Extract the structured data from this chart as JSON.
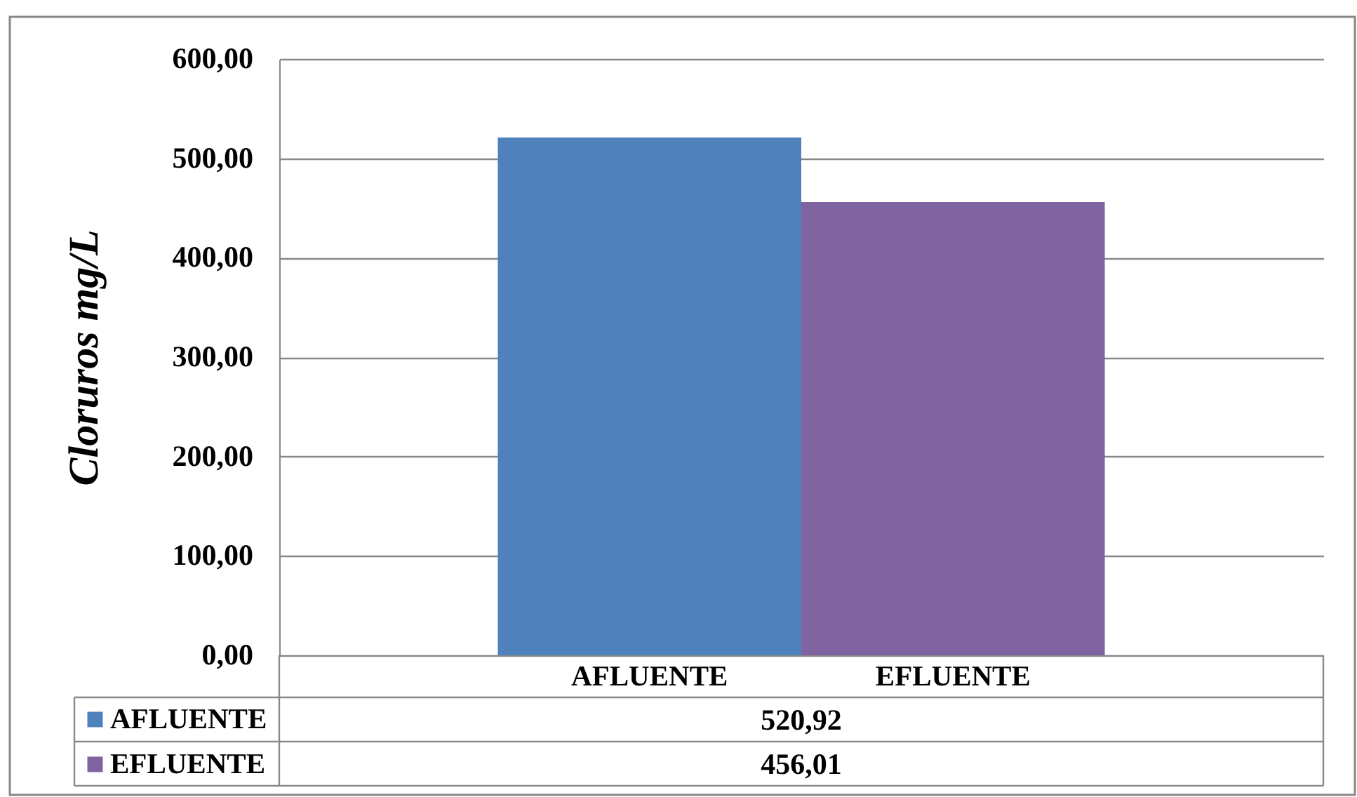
{
  "chart_data": {
    "type": "bar",
    "ylabel": "Cloruros mg/L",
    "categories": [
      "AFLUENTE",
      "EFLUENTE"
    ],
    "stacked": true,
    "series": [
      {
        "name": "AFLUENTE",
        "color": "#4f81bd",
        "values": [
          520.92,
          null
        ],
        "value_labels": [
          "520,92",
          null
        ]
      },
      {
        "name": "EFLUENTE",
        "color": "#8064a2",
        "values": [
          null,
          456.01
        ],
        "value_labels": [
          null,
          "456,01"
        ]
      }
    ],
    "legend": "bottom",
    "ylim": [
      0,
      600
    ],
    "yticks": [
      {
        "value": 0,
        "label": "0,00"
      },
      {
        "value": 100,
        "label": "100,00"
      },
      {
        "value": 200,
        "label": "200,00"
      },
      {
        "value": 300,
        "label": "300,00"
      },
      {
        "value": 400,
        "label": "400,00"
      },
      {
        "value": 500,
        "label": "500,00"
      },
      {
        "value": 600,
        "label": "600,00"
      }
    ],
    "grid": "y"
  }
}
